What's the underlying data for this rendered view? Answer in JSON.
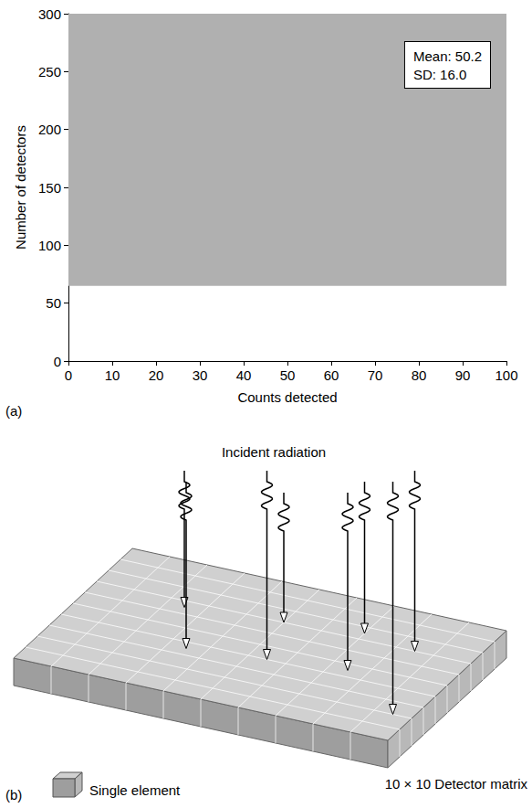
{
  "chart_data": {
    "type": "band",
    "panel_label": "(a)",
    "x_label": "Counts detected",
    "y_label": "Number of detectors",
    "xlim": [
      0,
      100
    ],
    "xticks": [
      0,
      10,
      20,
      30,
      40,
      50,
      60,
      70,
      80,
      90,
      100
    ],
    "ylim": [
      0,
      300
    ],
    "yticks": [
      0,
      50,
      100,
      150,
      200,
      250,
      300
    ],
    "band": {
      "x": [
        0,
        100
      ],
      "y": [
        65,
        300
      ]
    },
    "color": "#b0b0b0",
    "annotation": [
      "Mean: 50.2",
      "SD: 16.0"
    ],
    "grid": false
  },
  "diagram": {
    "panel_label": "(b)",
    "title": "Incident radiation",
    "matrix": {
      "rows": 10,
      "cols": 10,
      "label": "10 × 10 Detector matrix"
    },
    "element_label": "Single element"
  }
}
